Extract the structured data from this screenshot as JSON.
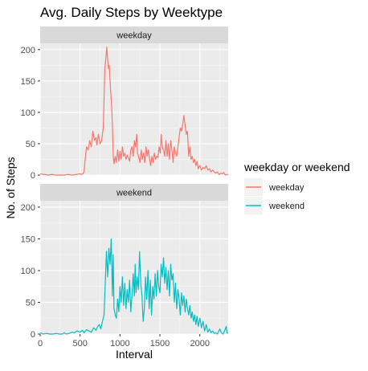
{
  "chart_data": {
    "type": "line",
    "title": "Avg. Daily Steps by Weektype",
    "xlabel": "Interval",
    "ylabel": "No. of Steps",
    "xlim": [
      0,
      2355
    ],
    "ylim": [
      0,
      210
    ],
    "x_ticks": [
      0,
      500,
      1000,
      1500,
      2000
    ],
    "y_ticks": [
      0,
      50,
      100,
      150,
      200
    ],
    "grid": true,
    "legend_position": "right",
    "legend_title": "weekday or weekend",
    "series": [
      {
        "name": "weekday",
        "facet": "weekday",
        "color": "#F8766D",
        "points": [
          [
            0,
            2
          ],
          [
            50,
            1
          ],
          [
            100,
            0
          ],
          [
            150,
            1
          ],
          [
            200,
            0
          ],
          [
            250,
            0
          ],
          [
            300,
            0
          ],
          [
            350,
            1
          ],
          [
            400,
            0
          ],
          [
            450,
            1
          ],
          [
            500,
            2
          ],
          [
            530,
            1
          ],
          [
            550,
            5
          ],
          [
            560,
            20
          ],
          [
            580,
            45
          ],
          [
            600,
            40
          ],
          [
            620,
            55
          ],
          [
            640,
            45
          ],
          [
            660,
            70
          ],
          [
            680,
            55
          ],
          [
            700,
            60
          ],
          [
            710,
            48
          ],
          [
            730,
            65
          ],
          [
            750,
            50
          ],
          [
            770,
            55
          ],
          [
            790,
            75
          ],
          [
            800,
            120
          ],
          [
            810,
            170
          ],
          [
            825,
            190
          ],
          [
            835,
            204
          ],
          [
            845,
            185
          ],
          [
            855,
            170
          ],
          [
            865,
            175
          ],
          [
            880,
            140
          ],
          [
            895,
            110
          ],
          [
            905,
            80
          ],
          [
            915,
            30
          ],
          [
            925,
            18
          ],
          [
            940,
            30
          ],
          [
            955,
            20
          ],
          [
            970,
            40
          ],
          [
            985,
            22
          ],
          [
            1000,
            38
          ],
          [
            1015,
            25
          ],
          [
            1030,
            45
          ],
          [
            1045,
            30
          ],
          [
            1060,
            35
          ],
          [
            1075,
            25
          ],
          [
            1090,
            32
          ],
          [
            1105,
            27
          ],
          [
            1120,
            22
          ],
          [
            1135,
            40
          ],
          [
            1150,
            45
          ],
          [
            1165,
            30
          ],
          [
            1180,
            55
          ],
          [
            1195,
            45
          ],
          [
            1210,
            65
          ],
          [
            1220,
            35
          ],
          [
            1235,
            28
          ],
          [
            1250,
            20
          ],
          [
            1265,
            40
          ],
          [
            1280,
            25
          ],
          [
            1295,
            35
          ],
          [
            1310,
            20
          ],
          [
            1325,
            45
          ],
          [
            1340,
            30
          ],
          [
            1355,
            40
          ],
          [
            1370,
            25
          ],
          [
            1385,
            15
          ],
          [
            1400,
            30
          ],
          [
            1415,
            20
          ],
          [
            1430,
            35
          ],
          [
            1445,
            25
          ],
          [
            1460,
            30
          ],
          [
            1475,
            28
          ],
          [
            1490,
            45
          ],
          [
            1505,
            35
          ],
          [
            1515,
            65
          ],
          [
            1530,
            45
          ],
          [
            1545,
            40
          ],
          [
            1560,
            30
          ],
          [
            1575,
            55
          ],
          [
            1590,
            30
          ],
          [
            1605,
            50
          ],
          [
            1620,
            25
          ],
          [
            1635,
            55
          ],
          [
            1650,
            40
          ],
          [
            1665,
            20
          ],
          [
            1680,
            45
          ],
          [
            1695,
            35
          ],
          [
            1710,
            30
          ],
          [
            1725,
            45
          ],
          [
            1740,
            60
          ],
          [
            1755,
            75
          ],
          [
            1770,
            70
          ],
          [
            1785,
            80
          ],
          [
            1800,
            95
          ],
          [
            1815,
            80
          ],
          [
            1830,
            65
          ],
          [
            1845,
            70
          ],
          [
            1860,
            30
          ],
          [
            1875,
            45
          ],
          [
            1890,
            25
          ],
          [
            1905,
            30
          ],
          [
            1920,
            20
          ],
          [
            1935,
            25
          ],
          [
            1950,
            15
          ],
          [
            1965,
            22
          ],
          [
            1980,
            10
          ],
          [
            2000,
            15
          ],
          [
            2020,
            8
          ],
          [
            2040,
            12
          ],
          [
            2060,
            10
          ],
          [
            2080,
            15
          ],
          [
            2100,
            8
          ],
          [
            2120,
            10
          ],
          [
            2140,
            5
          ],
          [
            2160,
            8
          ],
          [
            2180,
            5
          ],
          [
            2200,
            3
          ],
          [
            2220,
            5
          ],
          [
            2240,
            1
          ],
          [
            2260,
            3
          ],
          [
            2280,
            2
          ],
          [
            2300,
            4
          ],
          [
            2320,
            0
          ],
          [
            2355,
            1
          ]
        ]
      },
      {
        "name": "weekend",
        "facet": "weekend",
        "color": "#00BFC4",
        "points": [
          [
            0,
            2
          ],
          [
            40,
            0
          ],
          [
            80,
            1
          ],
          [
            120,
            0
          ],
          [
            160,
            0
          ],
          [
            200,
            1
          ],
          [
            240,
            0
          ],
          [
            280,
            0
          ],
          [
            300,
            2
          ],
          [
            330,
            0
          ],
          [
            360,
            1
          ],
          [
            400,
            3
          ],
          [
            430,
            2
          ],
          [
            460,
            5
          ],
          [
            500,
            3
          ],
          [
            530,
            6
          ],
          [
            550,
            2
          ],
          [
            580,
            7
          ],
          [
            610,
            5
          ],
          [
            640,
            3
          ],
          [
            670,
            10
          ],
          [
            700,
            6
          ],
          [
            720,
            12
          ],
          [
            740,
            15
          ],
          [
            760,
            8
          ],
          [
            780,
            20
          ],
          [
            800,
            30
          ],
          [
            815,
            80
          ],
          [
            830,
            130
          ],
          [
            845,
            90
          ],
          [
            860,
            135
          ],
          [
            875,
            110
          ],
          [
            890,
            150
          ],
          [
            905,
            60
          ],
          [
            915,
            125
          ],
          [
            925,
            40
          ],
          [
            940,
            30
          ],
          [
            955,
            25
          ],
          [
            970,
            55
          ],
          [
            985,
            35
          ],
          [
            1000,
            75
          ],
          [
            1015,
            50
          ],
          [
            1030,
            90
          ],
          [
            1045,
            45
          ],
          [
            1060,
            80
          ],
          [
            1075,
            40
          ],
          [
            1090,
            70
          ],
          [
            1105,
            50
          ],
          [
            1120,
            85
          ],
          [
            1135,
            35
          ],
          [
            1150,
            60
          ],
          [
            1165,
            95
          ],
          [
            1180,
            60
          ],
          [
            1190,
            110
          ],
          [
            1200,
            65
          ],
          [
            1215,
            90
          ],
          [
            1230,
            70
          ],
          [
            1245,
            130
          ],
          [
            1260,
            80
          ],
          [
            1275,
            60
          ],
          [
            1290,
            20
          ],
          [
            1305,
            40
          ],
          [
            1320,
            90
          ],
          [
            1335,
            55
          ],
          [
            1350,
            100
          ],
          [
            1365,
            40
          ],
          [
            1380,
            85
          ],
          [
            1395,
            30
          ],
          [
            1410,
            75
          ],
          [
            1425,
            55
          ],
          [
            1440,
            95
          ],
          [
            1455,
            60
          ],
          [
            1470,
            100
          ],
          [
            1485,
            75
          ],
          [
            1500,
            65
          ],
          [
            1515,
            110
          ],
          [
            1530,
            90
          ],
          [
            1545,
            120
          ],
          [
            1560,
            80
          ],
          [
            1575,
            105
          ],
          [
            1590,
            70
          ],
          [
            1605,
            100
          ],
          [
            1620,
            60
          ],
          [
            1635,
            110
          ],
          [
            1650,
            85
          ],
          [
            1665,
            95
          ],
          [
            1680,
            50
          ],
          [
            1695,
            80
          ],
          [
            1710,
            40
          ],
          [
            1725,
            70
          ],
          [
            1740,
            55
          ],
          [
            1755,
            30
          ],
          [
            1770,
            65
          ],
          [
            1785,
            45
          ],
          [
            1800,
            60
          ],
          [
            1815,
            35
          ],
          [
            1830,
            55
          ],
          [
            1845,
            40
          ],
          [
            1860,
            30
          ],
          [
            1875,
            45
          ],
          [
            1890,
            25
          ],
          [
            1905,
            35
          ],
          [
            1920,
            20
          ],
          [
            1935,
            30
          ],
          [
            1950,
            15
          ],
          [
            1965,
            28
          ],
          [
            1980,
            12
          ],
          [
            2000,
            25
          ],
          [
            2020,
            10
          ],
          [
            2040,
            20
          ],
          [
            2060,
            5
          ],
          [
            2080,
            15
          ],
          [
            2100,
            3
          ],
          [
            2120,
            8
          ],
          [
            2140,
            2
          ],
          [
            2160,
            5
          ],
          [
            2180,
            1
          ],
          [
            2200,
            2
          ],
          [
            2220,
            0
          ],
          [
            2250,
            8
          ],
          [
            2270,
            2
          ],
          [
            2290,
            0
          ],
          [
            2310,
            5
          ],
          [
            2330,
            12
          ],
          [
            2340,
            2
          ],
          [
            2355,
            1
          ]
        ]
      }
    ]
  }
}
